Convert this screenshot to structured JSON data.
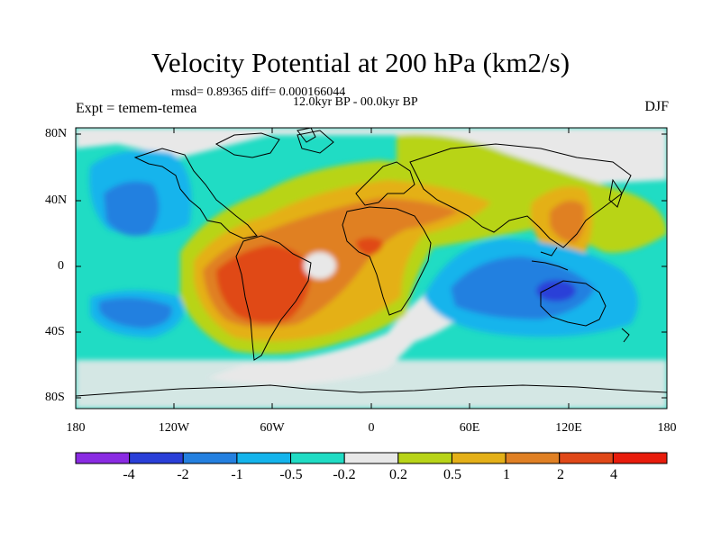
{
  "title": "Velocity Potential at 200 hPa (km2/s)",
  "stats_line": "rmsd= 0.89365 diff= 0.000166044",
  "experiment_label": "Expt = temem-temea",
  "period_label": "12.0kyr BP - 00.0kyr BP",
  "season_label": "DJF",
  "y_ticks": [
    "80N",
    "40N",
    "0",
    "40S",
    "80S"
  ],
  "x_ticks": [
    "180",
    "120W",
    "60W",
    "0",
    "60E",
    "120E",
    "180"
  ],
  "colorbar": {
    "labels": [
      "-4",
      "-2",
      "-1",
      "-0.5",
      "-0.2",
      "0.2",
      "0.5",
      "1",
      "2",
      "4"
    ],
    "colors": [
      "#8a2be2",
      "#2a3fd8",
      "#2480e0",
      "#14b4ec",
      "#20dcc4",
      "#e8e8e8",
      "#b8d418",
      "#e4b018",
      "#e08024",
      "#e04818",
      "#e81c0c"
    ]
  }
}
